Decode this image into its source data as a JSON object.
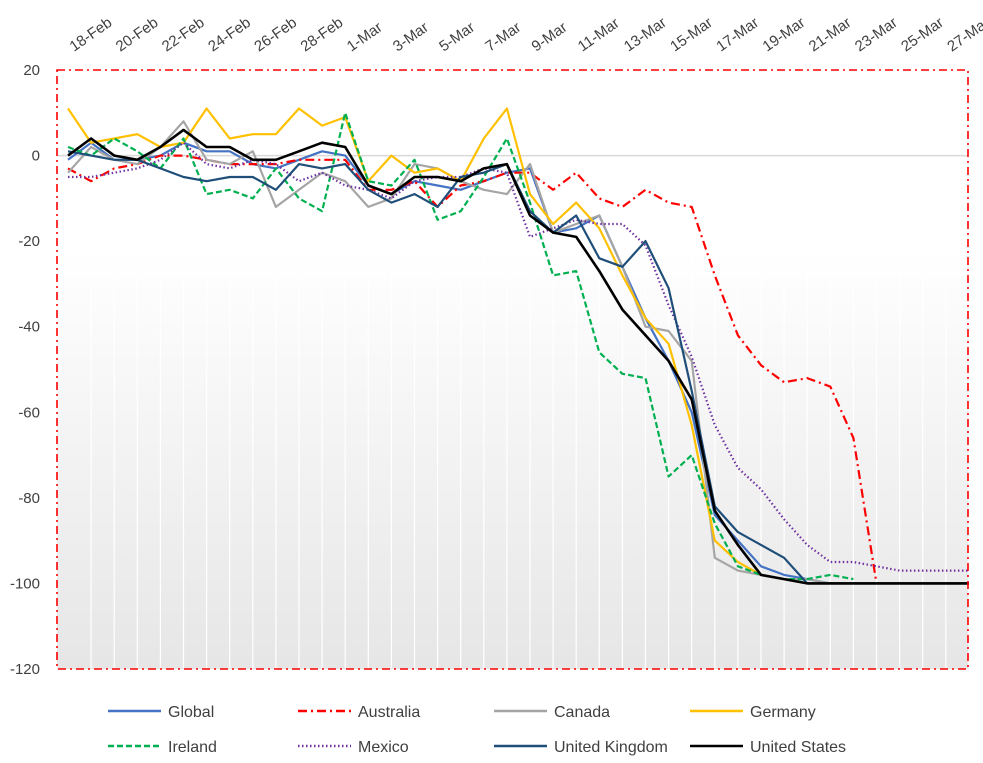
{
  "chart_data": {
    "type": "line",
    "title": "",
    "xlabel": "",
    "ylabel": "",
    "ylim": [
      -120,
      20
    ],
    "yticks": [
      20,
      0,
      -20,
      -40,
      -60,
      -80,
      -100,
      -120
    ],
    "x": [
      "18-Feb",
      "19-Feb",
      "20-Feb",
      "21-Feb",
      "22-Feb",
      "23-Feb",
      "24-Feb",
      "25-Feb",
      "26-Feb",
      "27-Feb",
      "28-Feb",
      "29-Feb",
      "1-Mar",
      "2-Mar",
      "3-Mar",
      "4-Mar",
      "5-Mar",
      "6-Mar",
      "7-Mar",
      "8-Mar",
      "9-Mar",
      "10-Mar",
      "11-Mar",
      "12-Mar",
      "13-Mar",
      "14-Mar",
      "15-Mar",
      "16-Mar",
      "17-Mar",
      "18-Mar",
      "19-Mar",
      "20-Mar",
      "21-Mar",
      "22-Mar",
      "23-Mar",
      "24-Mar",
      "25-Mar",
      "26-Mar",
      "27-Mar",
      "28-Mar"
    ],
    "xtick_labels": [
      "18-Feb",
      "20-Feb",
      "22-Feb",
      "24-Feb",
      "26-Feb",
      "28-Feb",
      "1-Mar",
      "3-Mar",
      "5-Mar",
      "7-Mar",
      "9-Mar",
      "11-Mar",
      "13-Mar",
      "15-Mar",
      "17-Mar",
      "19-Mar",
      "21-Mar",
      "23-Mar",
      "25-Mar",
      "27-Mar"
    ],
    "grid": "vertical",
    "legend_position": "bottom",
    "series": [
      {
        "name": "Global",
        "color": "#4472C4",
        "dash": "solid",
        "values": [
          -1,
          3,
          -1,
          -1,
          0,
          3,
          1,
          1,
          -2,
          -3,
          -1,
          1,
          0,
          -7,
          -9,
          -6,
          -7,
          -8,
          -6,
          -4,
          -3,
          -18,
          -17,
          -14,
          -26,
          -38,
          -48,
          -60,
          -84,
          -90,
          -96,
          -98,
          -99,
          -100,
          -100,
          -100,
          -100,
          -100,
          -100,
          -100
        ]
      },
      {
        "name": "Australia",
        "color": "#FF0000",
        "dash": "dashdot",
        "values": [
          -3,
          -6,
          -3,
          -2,
          0,
          0,
          -1,
          -2,
          -2,
          -2,
          -1,
          -1,
          -1,
          -8,
          -8,
          -6,
          -12,
          -7,
          -6,
          -4,
          -4,
          -8,
          -4,
          -10,
          -12,
          -8,
          -11,
          -12,
          -28,
          -42,
          -49,
          -53,
          -52,
          -54,
          -66,
          -100,
          null,
          null,
          null,
          null
        ]
      },
      {
        "name": "Canada",
        "color": "#A5A5A5",
        "dash": "solid",
        "values": [
          -4,
          2,
          -1,
          -2,
          2,
          8,
          -1,
          -2,
          1,
          -12,
          -8,
          -4,
          -6,
          -12,
          -10,
          -2,
          -3,
          -6,
          -8,
          -9,
          -2,
          -18,
          -16,
          -14,
          -26,
          -40,
          -41,
          -48,
          -94,
          -97,
          -98,
          -99,
          -99,
          -100,
          -100,
          -100,
          -100,
          -100,
          -100,
          -100
        ]
      },
      {
        "name": "Germany",
        "color": "#FFC000",
        "dash": "solid",
        "values": [
          11,
          3,
          4,
          5,
          2,
          3,
          11,
          4,
          5,
          5,
          11,
          7,
          9,
          -6,
          0,
          -4,
          -3,
          -6,
          4,
          11,
          -9,
          -16,
          -11,
          -17,
          -28,
          -38,
          -44,
          -63,
          -90,
          -95,
          -98,
          -99,
          -100,
          -100,
          -100,
          -100,
          -100,
          -100,
          -100,
          -100
        ]
      },
      {
        "name": "Ireland",
        "color": "#00B050",
        "dash": "dashed",
        "values": [
          2,
          0,
          4,
          1,
          -3,
          4,
          -9,
          -8,
          -10,
          -3,
          -10,
          -13,
          10,
          -6,
          -7,
          -1,
          -15,
          -13,
          -5,
          4,
          -11,
          -28,
          -27,
          -46,
          -51,
          -52,
          -75,
          -70,
          -86,
          -96,
          -98,
          -99,
          -99,
          -98,
          -99,
          null,
          null,
          null,
          null,
          null
        ]
      },
      {
        "name": "Mexico",
        "color": "#7030A0",
        "dash": "dotted",
        "values": [
          -5,
          -5,
          -4,
          -3,
          -1,
          3,
          -2,
          -3,
          -1,
          -2,
          -6,
          -4,
          -7,
          -8,
          -10,
          -6,
          -5,
          -5,
          -3,
          -4,
          -19,
          -17,
          -15,
          -16,
          -16,
          -21,
          -35,
          -47,
          -63,
          -73,
          -78,
          -85,
          -91,
          -95,
          -95,
          -96,
          -97,
          -97,
          -97,
          -97
        ]
      },
      {
        "name": "United Kingdom",
        "color": "#1F4E79",
        "dash": "solid",
        "values": [
          1,
          0,
          -1,
          -1,
          -3,
          -5,
          -6,
          -5,
          -5,
          -8,
          -2,
          -3,
          -2,
          -8,
          -11,
          -9,
          -12,
          -5,
          -4,
          -2,
          -13,
          -18,
          -14,
          -24,
          -26,
          -20,
          -31,
          -55,
          -82,
          -88,
          -91,
          -94,
          -100,
          -100,
          -100,
          -100,
          -100,
          -100,
          -100,
          -100
        ]
      },
      {
        "name": "United States",
        "color": "#000000",
        "dash": "solid",
        "values": [
          0,
          4,
          0,
          -1,
          2,
          6,
          2,
          2,
          -1,
          -1,
          1,
          3,
          2,
          -7,
          -9,
          -5,
          -5,
          -6,
          -3,
          -2,
          -14,
          -18,
          -19,
          -27,
          -36,
          -42,
          -48,
          -57,
          -83,
          -91,
          -98,
          -99,
          -100,
          -100,
          -100,
          -100,
          -100,
          -100,
          -100,
          -100
        ]
      }
    ]
  }
}
